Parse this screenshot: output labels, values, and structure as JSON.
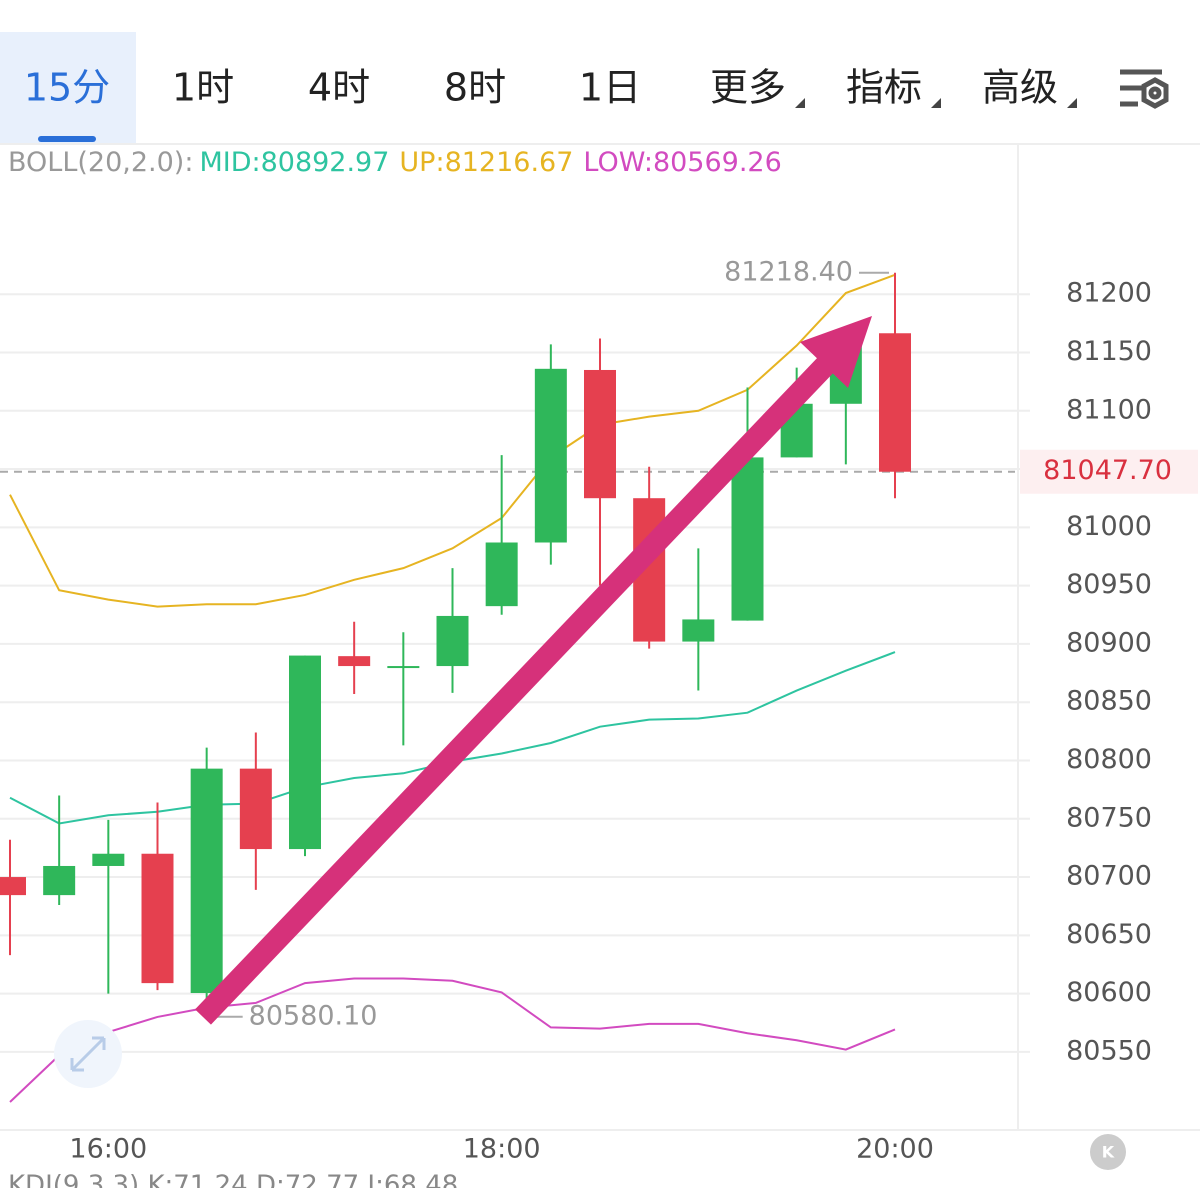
{
  "tabs": {
    "items": [
      "15分",
      "1时",
      "4时",
      "8时",
      "1日",
      "更多",
      "指标",
      "高级"
    ],
    "active": 0
  },
  "chart_data": {
    "type": "candlestick",
    "indicator": "BOLL(20,2.0):",
    "categories": [
      null,
      null,
      "16:00",
      null,
      null,
      null,
      null,
      null,
      null,
      null,
      "18:00",
      null,
      null,
      null,
      null,
      null,
      null,
      null,
      "20:00"
    ],
    "open": [
      80700,
      80684.5,
      80709.5,
      80720,
      80600.5,
      80793,
      80724,
      80889.5,
      80881,
      80881,
      80932.4,
      80987,
      81135,
      81025,
      80902,
      80920,
      81060,
      81106,
      81166.5
    ],
    "high": [
      80732,
      80770,
      80749,
      80764,
      80811,
      80824,
      80890,
      80919,
      80910,
      80965,
      81062,
      81157,
      81162,
      81052,
      80982,
      81120,
      81137,
      81167,
      81218.4
    ],
    "low": [
      80633,
      80676,
      80600,
      80603,
      80580.1,
      80689,
      80718,
      80857,
      80813,
      80858,
      80925,
      80968,
      80950,
      80896,
      80860,
      80920,
      81060,
      81054,
      81025
    ],
    "close": [
      80684.5,
      80709.5,
      80720,
      80609,
      80793,
      80724,
      80890,
      80881,
      80881,
      80924,
      80987,
      81136,
      81025,
      80902,
      80921,
      81060,
      81106,
      81167,
      81047.7
    ],
    "up_color": "#2fb75a",
    "down_color": "#e5404f",
    "series": [
      {
        "name": "MID",
        "label": "MID:80892.97",
        "color": "#2ec4a0",
        "values": [
          80768,
          80746,
          80753,
          80756,
          80762,
          80763,
          80777,
          80785,
          80789,
          80799,
          80806,
          80815,
          80829,
          80835,
          80836,
          80841,
          80860,
          80877,
          80892.97
        ]
      },
      {
        "name": "UP",
        "label": "UP:81216.67",
        "color": "#e6b422",
        "values": [
          81028,
          80946,
          80938,
          80932,
          80934,
          80934,
          80942,
          80955,
          80965,
          80982,
          81008,
          81060,
          81088,
          81095,
          81100,
          81118,
          81156,
          81201,
          81216.67
        ]
      },
      {
        "name": "LOW",
        "label": "LOW:80569.26",
        "color": "#d24bc0",
        "values": [
          80507,
          80547,
          80567,
          80580,
          80588,
          80592,
          80609,
          80613,
          80613,
          80611,
          80601,
          80571,
          80570,
          80574,
          80574,
          80566,
          80560,
          80552,
          80569.26
        ]
      }
    ],
    "ylim": [
      80483,
      81328
    ],
    "yticks": [
      80550,
      80600,
      80650,
      80700,
      80750,
      80800,
      80850,
      80900,
      80950,
      81000,
      81050,
      81100,
      81150,
      81200
    ],
    "grid": true,
    "high_marker": {
      "value": 81218.4,
      "label": "81218.40"
    },
    "low_marker": {
      "value": 80580.1,
      "label": "80580.10"
    },
    "last_price": {
      "value": 81047.7,
      "label": "81047.70"
    }
  },
  "footer": "KDJ(9,3,3)  K:71.24  D:72.77  J:68.48"
}
